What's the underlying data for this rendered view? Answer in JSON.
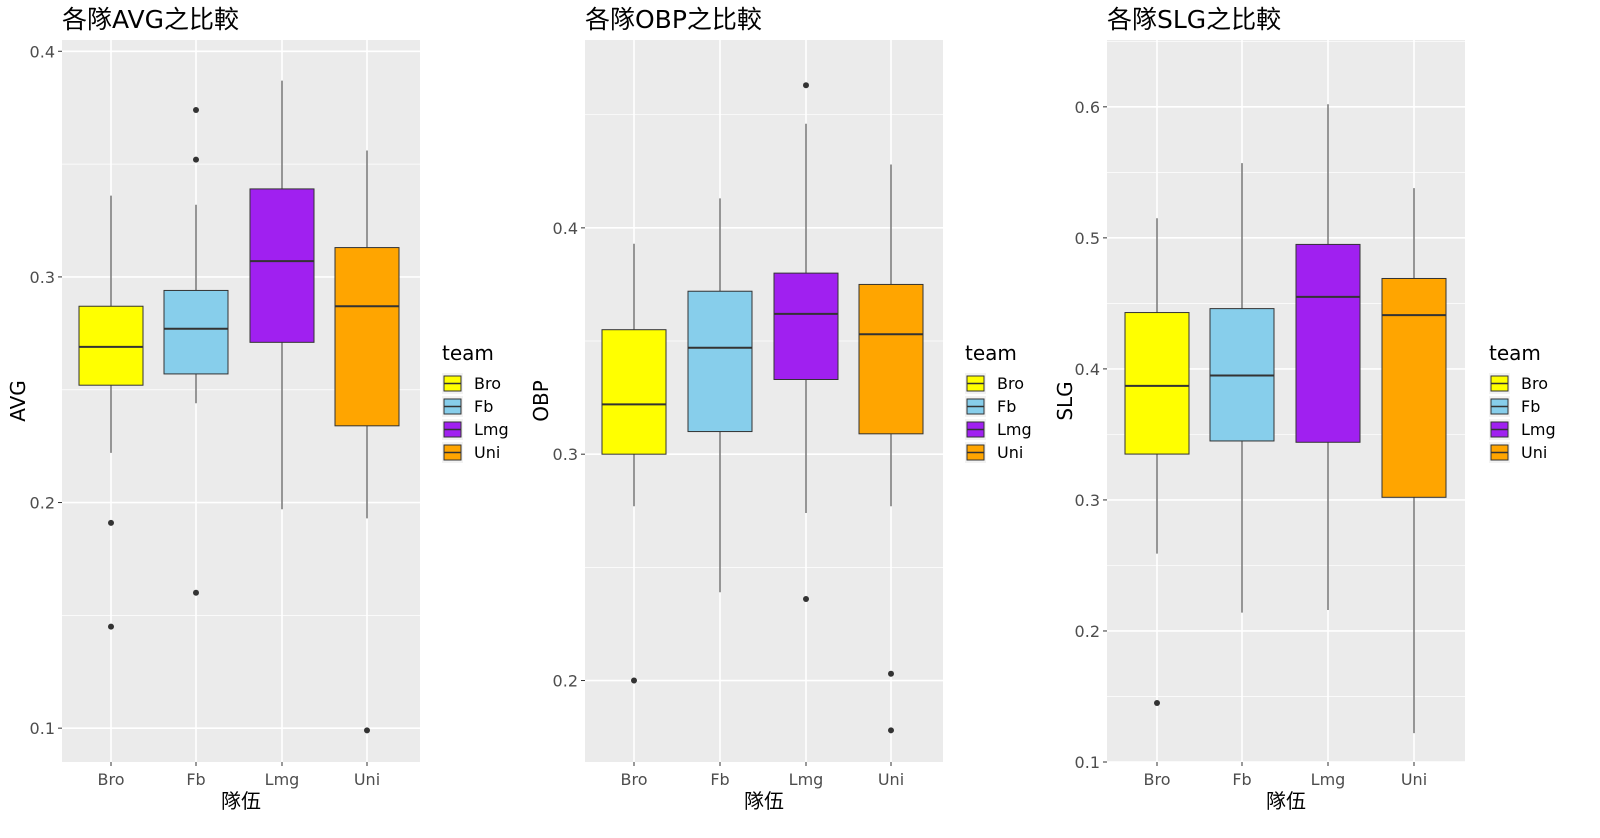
{
  "legend_title": "team",
  "legend_items": [
    {
      "label": "Bro",
      "color": "#ffff00"
    },
    {
      "label": "Fb",
      "color": "#87ceeb"
    },
    {
      "label": "Lmg",
      "color": "#a020f0"
    },
    {
      "label": "Uni",
      "color": "#ffa500"
    }
  ],
  "chart_data": [
    {
      "type": "boxplot",
      "title": "各隊AVG之比較",
      "xlabel": "隊伍",
      "ylabel": "AVG",
      "categories": [
        "Bro",
        "Fb",
        "Lmg",
        "Uni"
      ],
      "ylim": [
        0.085,
        0.405
      ],
      "yticks": [
        0.1,
        0.2,
        0.3,
        0.4
      ],
      "ytick_labels": [
        "0.1",
        "0.2",
        "0.3",
        "0.4"
      ],
      "boxes": [
        {
          "q1": 0.252,
          "median": 0.269,
          "q3": 0.287,
          "whisker_low": 0.222,
          "whisker_high": 0.336,
          "outliers": [
            0.191,
            0.145
          ]
        },
        {
          "q1": 0.257,
          "median": 0.277,
          "q3": 0.294,
          "whisker_low": 0.244,
          "whisker_high": 0.332,
          "outliers": [
            0.374,
            0.352,
            0.16
          ]
        },
        {
          "q1": 0.271,
          "median": 0.307,
          "q3": 0.339,
          "whisker_low": 0.197,
          "whisker_high": 0.387,
          "outliers": []
        },
        {
          "q1": 0.234,
          "median": 0.287,
          "q3": 0.313,
          "whisker_low": 0.193,
          "whisker_high": 0.356,
          "outliers": [
            0.099
          ]
        }
      ]
    },
    {
      "type": "boxplot",
      "title": "各隊OBP之比較",
      "xlabel": "隊伍",
      "ylabel": "OBP",
      "categories": [
        "Bro",
        "Fb",
        "Lmg",
        "Uni"
      ],
      "ylim": [
        0.164,
        0.483
      ],
      "yticks": [
        0.2,
        0.3,
        0.4
      ],
      "ytick_labels": [
        "0.2",
        "0.3",
        "0.4"
      ],
      "boxes": [
        {
          "q1": 0.3,
          "median": 0.322,
          "q3": 0.355,
          "whisker_low": 0.277,
          "whisker_high": 0.393,
          "outliers": [
            0.2
          ]
        },
        {
          "q1": 0.31,
          "median": 0.347,
          "q3": 0.372,
          "whisker_low": 0.239,
          "whisker_high": 0.413,
          "outliers": []
        },
        {
          "q1": 0.333,
          "median": 0.362,
          "q3": 0.38,
          "whisker_low": 0.274,
          "whisker_high": 0.446,
          "outliers": [
            0.463,
            0.236
          ]
        },
        {
          "q1": 0.309,
          "median": 0.353,
          "q3": 0.375,
          "whisker_low": 0.277,
          "whisker_high": 0.428,
          "outliers": [
            0.203,
            0.178
          ]
        }
      ]
    },
    {
      "type": "boxplot",
      "title": "各隊SLG之比較",
      "xlabel": "隊伍",
      "ylabel": "SLG",
      "categories": [
        "Bro",
        "Fb",
        "Lmg",
        "Uni"
      ],
      "ylim": [
        0.1,
        0.651
      ],
      "yticks": [
        0.1,
        0.2,
        0.3,
        0.4,
        0.5,
        0.6
      ],
      "ytick_labels": [
        "0.1",
        "0.2",
        "0.3",
        "0.4",
        "0.5",
        "0.6"
      ],
      "boxes": [
        {
          "q1": 0.335,
          "median": 0.387,
          "q3": 0.443,
          "whisker_low": 0.259,
          "whisker_high": 0.515,
          "outliers": [
            0.145
          ]
        },
        {
          "q1": 0.345,
          "median": 0.395,
          "q3": 0.446,
          "whisker_low": 0.214,
          "whisker_high": 0.557,
          "outliers": []
        },
        {
          "q1": 0.344,
          "median": 0.455,
          "q3": 0.495,
          "whisker_low": 0.216,
          "whisker_high": 0.602,
          "outliers": []
        },
        {
          "q1": 0.302,
          "median": 0.441,
          "q3": 0.469,
          "whisker_low": 0.122,
          "whisker_high": 0.538,
          "outliers": []
        }
      ]
    }
  ]
}
